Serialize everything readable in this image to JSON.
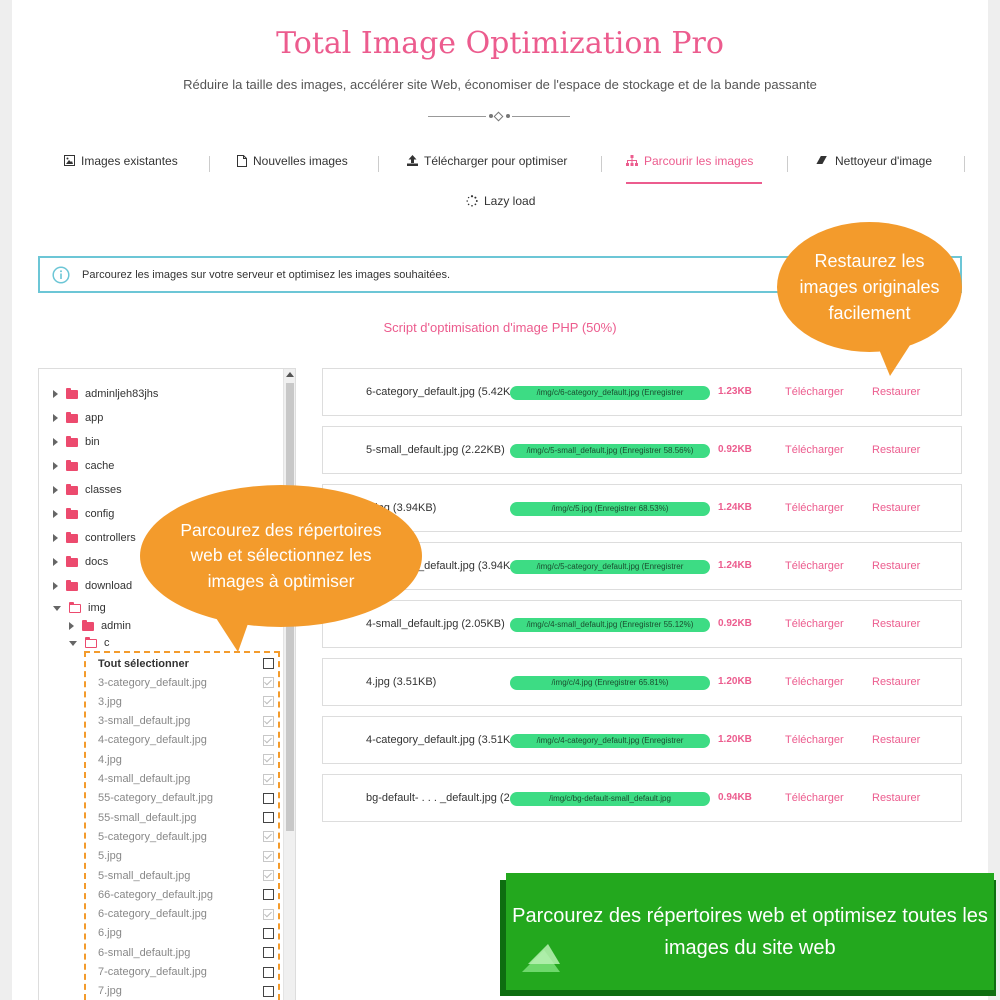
{
  "header": {
    "title": "Total Image Optimization Pro",
    "subtitle": "Réduire la taille des images, accélérer site Web, économiser de l'espace de stockage et de la bande passante"
  },
  "tabs": [
    {
      "label": "Images existantes",
      "icon": "image-icon"
    },
    {
      "label": "Nouvelles images",
      "icon": "file-icon"
    },
    {
      "label": "Télécharger pour optimiser",
      "icon": "upload-icon"
    },
    {
      "label": "Parcourir les images",
      "icon": "sitemap-icon",
      "active": true
    },
    {
      "label": "Nettoyeur d'image",
      "icon": "eraser-icon"
    },
    {
      "label": "Lazy load",
      "icon": "spinner-icon"
    }
  ],
  "info": {
    "text": "Parcourez les images sur votre serveur et optimisez les images souhaitées."
  },
  "script_title": "Script d'optimisation d'image PHP (50%)",
  "tree": {
    "folders": [
      "adminljeh83jhs",
      "app",
      "bin",
      "cache",
      "classes",
      "config",
      "controllers",
      "docs",
      "download"
    ],
    "img_folder": "img",
    "img_children": [
      "admin",
      "c"
    ]
  },
  "file_list": {
    "select_all": "Tout sélectionner",
    "files": [
      {
        "name": "3-category_default.jpg",
        "checked": true
      },
      {
        "name": "3.jpg",
        "checked": true
      },
      {
        "name": "3-small_default.jpg",
        "checked": true
      },
      {
        "name": "4-category_default.jpg",
        "checked": true
      },
      {
        "name": "4.jpg",
        "checked": true
      },
      {
        "name": "4-small_default.jpg",
        "checked": true
      },
      {
        "name": "55-category_default.jpg",
        "checked": false
      },
      {
        "name": "55-small_default.jpg",
        "checked": false
      },
      {
        "name": "5-category_default.jpg",
        "checked": true
      },
      {
        "name": "5.jpg",
        "checked": true
      },
      {
        "name": "5-small_default.jpg",
        "checked": true
      },
      {
        "name": "66-category_default.jpg",
        "checked": false
      },
      {
        "name": "6-category_default.jpg",
        "checked": true
      },
      {
        "name": "6.jpg",
        "checked": false
      },
      {
        "name": "6-small_default.jpg",
        "checked": false
      },
      {
        "name": "7-category_default.jpg",
        "checked": false
      },
      {
        "name": "7.jpg",
        "checked": false
      }
    ]
  },
  "results": {
    "download_label": "Télécharger",
    "restore_label": "Restaurer",
    "rows": [
      {
        "file": "6-category_default.jpg (5.42KB)",
        "bar": "/img/c/6-category_default.jpg (Enregistrer",
        "size": "1.23KB"
      },
      {
        "file": "5-small_default.jpg (2.22KB)",
        "bar": "/img/c/5-small_default.jpg (Enregistrer 58.56%)",
        "size": "0.92KB"
      },
      {
        "file": "5.jpg (3.94KB)",
        "bar": "/img/c/5.jpg (Enregistrer 68.53%)",
        "size": "1.24KB"
      },
      {
        "file": "5-category_default.jpg (3.94KB)",
        "bar": "/img/c/5-category_default.jpg (Enregistrer",
        "size": "1.24KB"
      },
      {
        "file": "4-small_default.jpg (2.05KB)",
        "bar": "/img/c/4-small_default.jpg (Enregistrer 55.12%)",
        "size": "0.92KB"
      },
      {
        "file": "4.jpg (3.51KB)",
        "bar": "/img/c/4.jpg (Enregistrer 65.81%)",
        "size": "1.20KB"
      },
      {
        "file": "4-category_default.jpg (3.51KB)",
        "bar": "/img/c/4-category_default.jpg (Enregistrer",
        "size": "1.20KB"
      },
      {
        "file": "bg-default- . . . _default.jpg (2",
        "bar": "/img/c/bg-default-small_default.jpg",
        "size": "0.94KB"
      }
    ]
  },
  "callouts": {
    "restore": "Restaurez les images originales facilement",
    "browse": "Parcourez des répertoires web et sélectionnez les images à optimiser",
    "banner": "Parcourez des répertoires web et optimisez toutes les images du site web"
  },
  "colors": {
    "accent": "#ec5c8e",
    "callout": "#f39b2c",
    "progress": "#3ddc84",
    "banner": "#23a81e",
    "info_border": "#6cc6d6"
  }
}
